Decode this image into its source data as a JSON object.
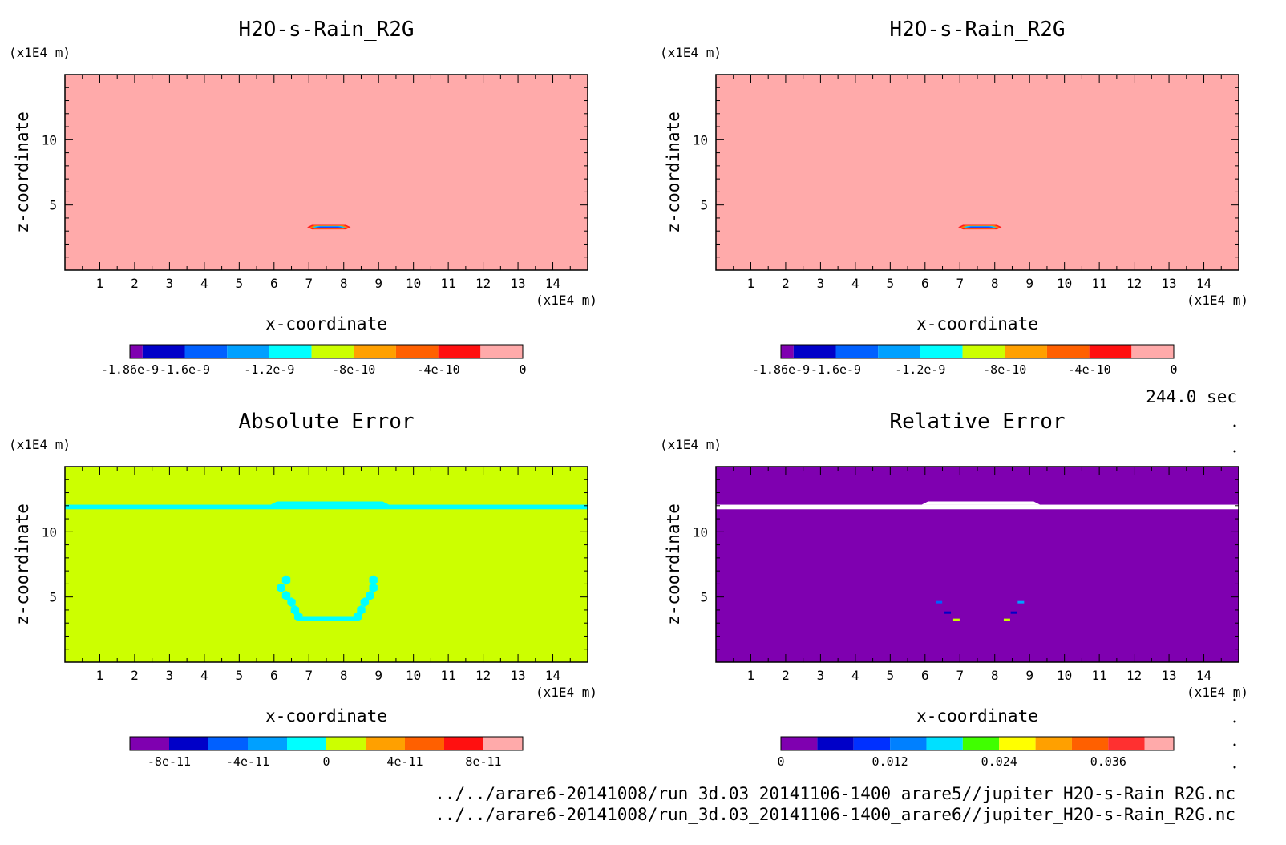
{
  "chart_data": [
    {
      "type": "heatmap",
      "title": "H2O-s-Rain_R2G",
      "xlabel": "x-coordinate",
      "ylabel": "z-coordinate",
      "x_unit": "(x1E4 m)",
      "y_unit": "(x1E4 m)",
      "xlim": [
        0,
        15
      ],
      "ylim": [
        0,
        15
      ],
      "x_ticks": [
        1,
        2,
        3,
        4,
        5,
        6,
        7,
        8,
        9,
        10,
        11,
        12,
        13,
        14
      ],
      "y_ticks": [
        5,
        10
      ],
      "background_value": 0,
      "background_color": "#ffaaaa",
      "features": [
        {
          "x0": 6.95,
          "x1": 8.2,
          "z": 3.3,
          "height": 0.35,
          "colors": [
            "#ff2020",
            "#ff8000",
            "#00d0ff",
            "#2040ff"
          ]
        }
      ],
      "colorbar": {
        "colors": [
          "#7f00b0",
          "#0000c8",
          "#0060ff",
          "#00a0ff",
          "#00ffff",
          "#ccff00",
          "#ffa000",
          "#ff6000",
          "#ff1010",
          "#ffaaaa"
        ],
        "breaks": [
          -1.86e-09,
          -1.8e-09,
          -1.6e-09,
          -1.4e-09,
          -1.2e-09,
          -1e-09,
          -8e-10,
          -6e-10,
          -4e-10,
          -2e-10,
          0
        ],
        "tick_values": [
          -1.86e-09,
          -1.6e-09,
          -1.2e-09,
          -8e-10,
          -4e-10,
          0
        ],
        "tick_labels": [
          "-1.86e-9",
          "-1.6e-9",
          "-1.2e-9",
          "-8e-10",
          "-4e-10",
          "0"
        ]
      }
    },
    {
      "type": "heatmap",
      "title": "H2O-s-Rain_R2G",
      "xlabel": "x-coordinate",
      "ylabel": "z-coordinate",
      "x_unit": "(x1E4 m)",
      "y_unit": "(x1E4 m)",
      "xlim": [
        0,
        15
      ],
      "ylim": [
        0,
        15
      ],
      "x_ticks": [
        1,
        2,
        3,
        4,
        5,
        6,
        7,
        8,
        9,
        10,
        11,
        12,
        13,
        14
      ],
      "y_ticks": [
        5,
        10
      ],
      "background_value": 0,
      "background_color": "#ffaaaa",
      "features": [
        {
          "x0": 6.95,
          "x1": 8.2,
          "z": 3.3,
          "height": 0.35,
          "colors": [
            "#ff2020",
            "#ff8000",
            "#00d0ff",
            "#2040ff"
          ]
        }
      ],
      "colorbar": {
        "colors": [
          "#7f00b0",
          "#0000c8",
          "#0060ff",
          "#00a0ff",
          "#00ffff",
          "#ccff00",
          "#ffa000",
          "#ff6000",
          "#ff1010",
          "#ffaaaa"
        ],
        "breaks": [
          -1.86e-09,
          -1.8e-09,
          -1.6e-09,
          -1.4e-09,
          -1.2e-09,
          -1e-09,
          -8e-10,
          -6e-10,
          -4e-10,
          -2e-10,
          0
        ],
        "tick_values": [
          -1.86e-09,
          -1.6e-09,
          -1.2e-09,
          -8e-10,
          -4e-10,
          0
        ],
        "tick_labels": [
          "-1.86e-9",
          "-1.6e-9",
          "-1.2e-9",
          "-8e-10",
          "-4e-10",
          "0"
        ]
      }
    },
    {
      "type": "heatmap",
      "title": "Absolute Error",
      "xlabel": "x-coordinate",
      "ylabel": "z-coordinate",
      "x_unit": "(x1E4 m)",
      "y_unit": "(x1E4 m)",
      "xlim": [
        0,
        15
      ],
      "ylim": [
        0,
        15
      ],
      "x_ticks": [
        1,
        2,
        3,
        4,
        5,
        6,
        7,
        8,
        9,
        10,
        11,
        12,
        13,
        14
      ],
      "y_ticks": [
        5,
        10
      ],
      "background_value": 0,
      "background_color": "#ccff00",
      "band": {
        "z": 11.9,
        "thickness": 0.35,
        "bump_x0": 5.9,
        "bump_x1": 9.3,
        "bump_extra": 0.25,
        "color": "#00ffff"
      },
      "blobs": [
        {
          "x": 6.35,
          "z": 6.3
        },
        {
          "x": 6.2,
          "z": 5.7
        },
        {
          "x": 6.35,
          "z": 5.1
        },
        {
          "x": 6.5,
          "z": 4.6
        },
        {
          "x": 6.6,
          "z": 4.0
        },
        {
          "x": 6.7,
          "z": 3.5
        },
        {
          "x": 8.85,
          "z": 6.3
        },
        {
          "x": 8.85,
          "z": 5.7
        },
        {
          "x": 8.75,
          "z": 5.1
        },
        {
          "x": 8.6,
          "z": 4.6
        },
        {
          "x": 8.5,
          "z": 4.0
        },
        {
          "x": 8.4,
          "z": 3.5
        }
      ],
      "blob_bar": {
        "x0": 6.7,
        "x1": 8.4,
        "z": 3.35,
        "color": "#00ffff"
      },
      "colorbar": {
        "colors": [
          "#7f00b0",
          "#0000c8",
          "#0060ff",
          "#00a0ff",
          "#00ffff",
          "#ccff00",
          "#ffa000",
          "#ff6000",
          "#ff1010",
          "#ffaaaa"
        ],
        "breaks": [
          -1e-10,
          -8e-11,
          -6e-11,
          -4e-11,
          -2e-11,
          0,
          2e-11,
          4e-11,
          6e-11,
          8e-11,
          1e-10
        ],
        "tick_values": [
          -8e-11,
          -4e-11,
          0,
          4e-11,
          8e-11
        ],
        "tick_labels": [
          "-8e-11",
          "-4e-11",
          "0",
          "4e-11",
          "8e-11"
        ]
      }
    },
    {
      "type": "heatmap",
      "title": "Relative Error",
      "xlabel": "x-coordinate",
      "ylabel": "z-coordinate",
      "x_unit": "(x1E4 m)",
      "y_unit": "(x1E4 m)",
      "xlim": [
        0,
        15
      ],
      "ylim": [
        0,
        15
      ],
      "x_ticks": [
        1,
        2,
        3,
        4,
        5,
        6,
        7,
        8,
        9,
        10,
        11,
        12,
        13,
        14
      ],
      "y_ticks": [
        5,
        10
      ],
      "background_value": 0,
      "background_color": "#7f00b0",
      "band": {
        "z": 11.9,
        "thickness": 0.35,
        "bump_x0": 5.9,
        "bump_x1": 9.3,
        "bump_extra": 0.25,
        "color": "#ffffff"
      },
      "dots": [
        {
          "x": 6.9,
          "z": 3.25,
          "color": "#ccff00"
        },
        {
          "x": 8.35,
          "z": 3.25,
          "color": "#ccff00"
        },
        {
          "x": 6.65,
          "z": 3.8,
          "color": "#0000c8"
        },
        {
          "x": 8.55,
          "z": 3.8,
          "color": "#0000c8"
        },
        {
          "x": 8.75,
          "z": 4.6,
          "color": "#00a0ff"
        },
        {
          "x": 6.4,
          "z": 4.6,
          "color": "#0060ff"
        }
      ],
      "colorbar": {
        "colors": [
          "#7f00b0",
          "#0000c8",
          "#0030ff",
          "#0080ff",
          "#00e0ff",
          "#40ff00",
          "#ffff00",
          "#ffa000",
          "#ff6000",
          "#ff3030",
          "#ffaaaa"
        ],
        "breaks": [
          0,
          0.004,
          0.008,
          0.012,
          0.016,
          0.02,
          0.024,
          0.028,
          0.032,
          0.036,
          0.04,
          0.0432
        ],
        "tick_values": [
          0,
          0.012,
          0.024,
          0.036
        ],
        "tick_labels": [
          "0",
          "0.012",
          "0.024",
          "0.036"
        ]
      }
    }
  ],
  "timestamp": "244.0 sec",
  "footer_lines": [
    "../../arare6-20141008/run_3d.03_20141106-1400_arare5//jupiter_H2O-s-Rain_R2G.nc",
    "../../arare6-20141008/run_3d.03_20141106-1400_arare6//jupiter_H2O-s-Rain_R2G.nc"
  ]
}
